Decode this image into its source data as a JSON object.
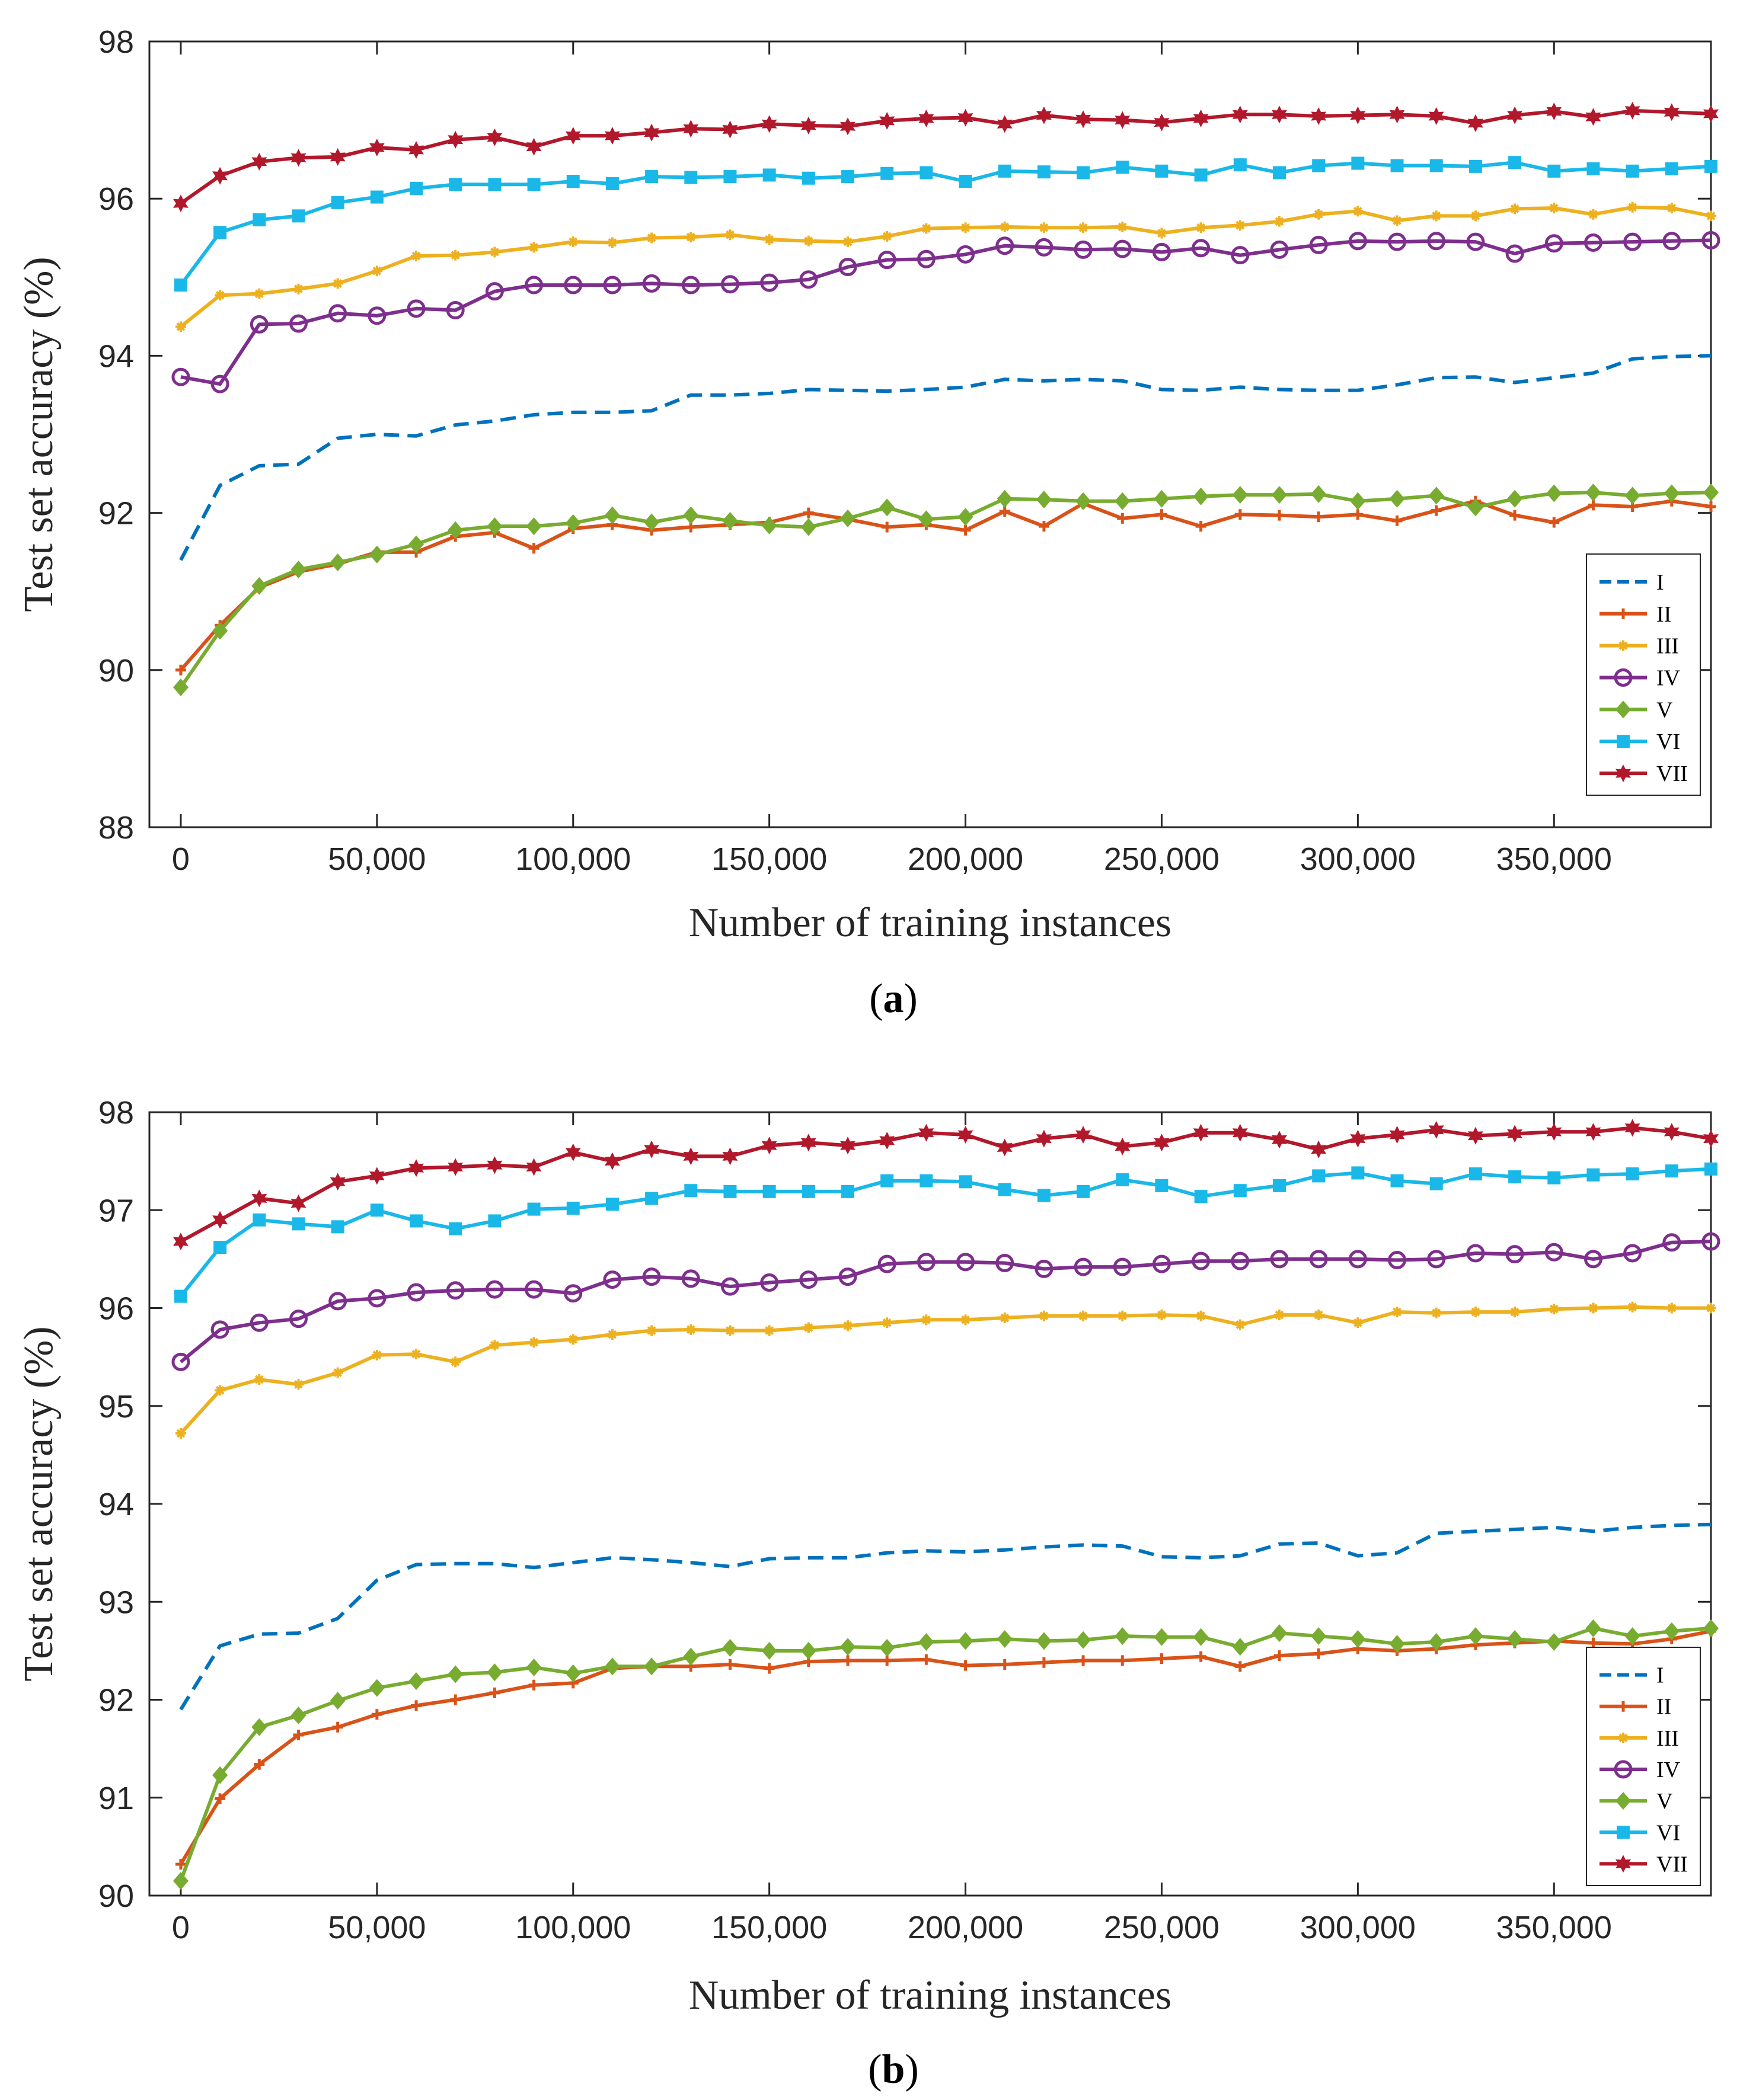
{
  "colors": {
    "I": "#0072BD",
    "II": "#D95319",
    "III": "#EDB120",
    "IV": "#7E2F8E",
    "V": "#77AC30",
    "VI": "#1AB8E8",
    "VII": "#B2182B"
  },
  "chart_data": [
    {
      "type": "line",
      "panel_label": "a",
      "xlabel": "Number of training instances",
      "ylabel": "Test set accuracy (%)",
      "xlim": [
        -8000,
        390000
      ],
      "ylim": [
        88,
        98
      ],
      "xticks": [
        0,
        50000,
        100000,
        150000,
        200000,
        250000,
        300000,
        350000
      ],
      "xtick_labels": [
        "0",
        "50,000",
        "100,000",
        "150,000",
        "200,000",
        "250,000",
        "300,000",
        "350,000"
      ],
      "yticks": [
        88,
        90,
        92,
        94,
        96,
        98
      ],
      "ytick_labels": [
        "88",
        "90",
        "92",
        "94",
        "96",
        "98"
      ],
      "legend_position": "bottom-right",
      "x": [
        0,
        10000,
        20000,
        30000,
        40000,
        50000,
        60000,
        70000,
        80000,
        90000,
        100000,
        110000,
        120000,
        130000,
        140000,
        150000,
        160000,
        170000,
        180000,
        190000,
        200000,
        210000,
        220000,
        230000,
        240000,
        250000,
        260000,
        270000,
        280000,
        290000,
        300000,
        310000,
        320000,
        330000,
        340000,
        350000,
        360000,
        370000,
        380000,
        390000
      ],
      "series": [
        {
          "name": "I",
          "style": "dash",
          "marker": "none",
          "values": [
            91.4,
            92.35,
            92.6,
            92.62,
            92.95,
            93.0,
            92.98,
            93.12,
            93.17,
            93.25,
            93.28,
            93.28,
            93.3,
            93.5,
            93.5,
            93.52,
            93.57,
            93.56,
            93.55,
            93.57,
            93.6,
            93.7,
            93.68,
            93.7,
            93.68,
            93.57,
            93.56,
            93.6,
            93.57,
            93.56,
            93.56,
            93.63,
            93.72,
            93.73,
            93.66,
            93.72,
            93.78,
            93.96,
            93.99,
            94.0
          ]
        },
        {
          "name": "II",
          "style": "solid",
          "marker": "plus",
          "values": [
            90.0,
            90.57,
            91.05,
            91.25,
            91.35,
            91.5,
            91.5,
            91.7,
            91.75,
            91.55,
            91.8,
            91.85,
            91.78,
            91.82,
            91.85,
            91.88,
            92.0,
            91.92,
            91.82,
            91.85,
            91.78,
            92.02,
            91.83,
            92.12,
            91.93,
            91.98,
            91.83,
            91.98,
            91.97,
            91.95,
            91.98,
            91.9,
            92.03,
            92.15,
            91.97,
            91.88,
            92.1,
            92.08,
            92.15,
            92.08
          ]
        },
        {
          "name": "III",
          "style": "solid",
          "marker": "star",
          "values": [
            94.37,
            94.77,
            94.79,
            94.85,
            94.92,
            95.08,
            95.27,
            95.28,
            95.32,
            95.38,
            95.45,
            95.44,
            95.5,
            95.51,
            95.54,
            95.48,
            95.46,
            95.45,
            95.52,
            95.62,
            95.63,
            95.64,
            95.63,
            95.63,
            95.64,
            95.56,
            95.63,
            95.66,
            95.71,
            95.8,
            95.84,
            95.72,
            95.78,
            95.78,
            95.87,
            95.88,
            95.8,
            95.89,
            95.88,
            95.78
          ]
        },
        {
          "name": "IV",
          "style": "solid",
          "marker": "circle",
          "values": [
            93.73,
            93.64,
            94.4,
            94.41,
            94.54,
            94.51,
            94.6,
            94.58,
            94.82,
            94.9,
            94.9,
            94.9,
            94.92,
            94.9,
            94.91,
            94.93,
            94.97,
            95.13,
            95.22,
            95.23,
            95.29,
            95.4,
            95.38,
            95.35,
            95.36,
            95.32,
            95.37,
            95.28,
            95.35,
            95.41,
            95.46,
            95.45,
            95.46,
            95.45,
            95.3,
            95.43,
            95.44,
            95.45,
            95.46,
            95.47
          ]
        },
        {
          "name": "V",
          "style": "solid",
          "marker": "diamond",
          "values": [
            89.78,
            90.5,
            91.07,
            91.28,
            91.37,
            91.47,
            91.6,
            91.78,
            91.83,
            91.83,
            91.87,
            91.97,
            91.88,
            91.97,
            91.9,
            91.84,
            91.82,
            91.93,
            92.07,
            91.92,
            91.95,
            92.18,
            92.17,
            92.15,
            92.15,
            92.18,
            92.21,
            92.23,
            92.23,
            92.24,
            92.15,
            92.18,
            92.22,
            92.07,
            92.18,
            92.25,
            92.26,
            92.22,
            92.25,
            92.26
          ]
        },
        {
          "name": "VI",
          "style": "solid",
          "marker": "square",
          "values": [
            94.9,
            95.57,
            95.73,
            95.78,
            95.95,
            96.02,
            96.13,
            96.18,
            96.18,
            96.18,
            96.22,
            96.19,
            96.28,
            96.27,
            96.28,
            96.3,
            96.26,
            96.28,
            96.32,
            96.33,
            96.22,
            96.35,
            96.34,
            96.33,
            96.4,
            96.35,
            96.3,
            96.43,
            96.33,
            96.42,
            96.45,
            96.42,
            96.42,
            96.41,
            96.46,
            96.35,
            96.38,
            96.35,
            96.38,
            96.41
          ]
        },
        {
          "name": "VII",
          "style": "solid",
          "marker": "hexagram",
          "values": [
            95.94,
            96.29,
            96.47,
            96.52,
            96.53,
            96.65,
            96.62,
            96.75,
            96.78,
            96.66,
            96.8,
            96.8,
            96.84,
            96.89,
            96.88,
            96.95,
            96.93,
            96.92,
            96.99,
            97.02,
            97.03,
            96.95,
            97.06,
            97.01,
            97.0,
            96.97,
            97.02,
            97.07,
            97.07,
            97.05,
            97.06,
            97.07,
            97.05,
            96.96,
            97.06,
            97.11,
            97.04,
            97.12,
            97.1,
            97.08
          ]
        }
      ]
    },
    {
      "type": "line",
      "panel_label": "b",
      "xlabel": "Number of training instances",
      "ylabel": "Test set accuracy (%)",
      "xlim": [
        -8000,
        390000
      ],
      "ylim": [
        90,
        98
      ],
      "xticks": [
        0,
        50000,
        100000,
        150000,
        200000,
        250000,
        300000,
        350000
      ],
      "xtick_labels": [
        "0",
        "50,000",
        "100,000",
        "150,000",
        "200,000",
        "250,000",
        "300,000",
        "350,000"
      ],
      "yticks": [
        90,
        91,
        92,
        93,
        94,
        95,
        96,
        97,
        98
      ],
      "ytick_labels": [
        "90",
        "91",
        "92",
        "93",
        "94",
        "95",
        "96",
        "97",
        "98"
      ],
      "legend_position": "bottom-right",
      "x": [
        0,
        10000,
        20000,
        30000,
        40000,
        50000,
        60000,
        70000,
        80000,
        90000,
        100000,
        110000,
        120000,
        130000,
        140000,
        150000,
        160000,
        170000,
        180000,
        190000,
        200000,
        210000,
        220000,
        230000,
        240000,
        250000,
        260000,
        270000,
        280000,
        290000,
        300000,
        310000,
        320000,
        330000,
        340000,
        350000,
        360000,
        370000,
        380000,
        390000
      ],
      "series": [
        {
          "name": "I",
          "style": "dash",
          "marker": "none",
          "values": [
            91.9,
            92.55,
            92.67,
            92.68,
            92.83,
            93.22,
            93.38,
            93.39,
            93.39,
            93.35,
            93.4,
            93.45,
            93.43,
            93.4,
            93.36,
            93.44,
            93.45,
            93.45,
            93.5,
            93.52,
            93.51,
            93.53,
            93.56,
            93.58,
            93.57,
            93.46,
            93.45,
            93.47,
            93.59,
            93.6,
            93.47,
            93.5,
            93.7,
            93.72,
            93.74,
            93.76,
            93.72,
            93.76,
            93.78,
            93.79
          ]
        },
        {
          "name": "II",
          "style": "solid",
          "marker": "plus",
          "values": [
            90.32,
            90.99,
            91.34,
            91.64,
            91.72,
            91.85,
            91.94,
            92.0,
            92.07,
            92.15,
            92.17,
            92.32,
            92.34,
            92.34,
            92.36,
            92.32,
            92.39,
            92.4,
            92.4,
            92.41,
            92.35,
            92.36,
            92.38,
            92.4,
            92.4,
            92.42,
            92.44,
            92.34,
            92.45,
            92.47,
            92.52,
            92.5,
            92.52,
            92.56,
            92.58,
            92.6,
            92.58,
            92.57,
            92.62,
            92.7
          ]
        },
        {
          "name": "III",
          "style": "solid",
          "marker": "star",
          "values": [
            94.72,
            95.16,
            95.27,
            95.22,
            95.34,
            95.52,
            95.53,
            95.45,
            95.62,
            95.65,
            95.68,
            95.73,
            95.77,
            95.78,
            95.77,
            95.77,
            95.8,
            95.82,
            95.85,
            95.88,
            95.88,
            95.9,
            95.92,
            95.92,
            95.92,
            95.93,
            95.92,
            95.83,
            95.93,
            95.93,
            95.85,
            95.96,
            95.95,
            95.96,
            95.96,
            95.99,
            96.0,
            96.01,
            96.0,
            96.0
          ]
        },
        {
          "name": "IV",
          "style": "solid",
          "marker": "circle",
          "values": [
            95.45,
            95.78,
            95.85,
            95.89,
            96.07,
            96.1,
            96.16,
            96.18,
            96.19,
            96.19,
            96.15,
            96.29,
            96.32,
            96.3,
            96.22,
            96.26,
            96.29,
            96.32,
            96.45,
            96.47,
            96.47,
            96.46,
            96.4,
            96.42,
            96.42,
            96.45,
            96.48,
            96.48,
            96.5,
            96.5,
            96.5,
            96.49,
            96.5,
            96.56,
            96.55,
            96.57,
            96.5,
            96.56,
            96.67,
            96.68
          ]
        },
        {
          "name": "V",
          "style": "solid",
          "marker": "diamond",
          "values": [
            90.15,
            91.23,
            91.72,
            91.84,
            91.99,
            92.12,
            92.19,
            92.26,
            92.28,
            92.33,
            92.27,
            92.34,
            92.34,
            92.44,
            92.53,
            92.5,
            92.5,
            92.54,
            92.53,
            92.59,
            92.6,
            92.62,
            92.6,
            92.61,
            92.65,
            92.64,
            92.64,
            92.54,
            92.68,
            92.65,
            92.62,
            92.57,
            92.59,
            92.65,
            92.62,
            92.59,
            92.73,
            92.65,
            92.7,
            92.73
          ]
        },
        {
          "name": "VI",
          "style": "solid",
          "marker": "square",
          "values": [
            96.12,
            96.62,
            96.9,
            96.86,
            96.83,
            97.0,
            96.89,
            96.81,
            96.89,
            97.01,
            97.02,
            97.06,
            97.12,
            97.2,
            97.19,
            97.19,
            97.19,
            97.19,
            97.3,
            97.3,
            97.29,
            97.21,
            97.15,
            97.19,
            97.31,
            97.25,
            97.14,
            97.2,
            97.25,
            97.35,
            97.38,
            97.3,
            97.27,
            97.37,
            97.34,
            97.33,
            97.36,
            97.37,
            97.4,
            97.42
          ]
        },
        {
          "name": "VII",
          "style": "solid",
          "marker": "hexagram",
          "values": [
            96.68,
            96.9,
            97.12,
            97.07,
            97.29,
            97.35,
            97.43,
            97.44,
            97.46,
            97.44,
            97.59,
            97.5,
            97.62,
            97.55,
            97.55,
            97.66,
            97.69,
            97.66,
            97.71,
            97.79,
            97.77,
            97.64,
            97.73,
            97.77,
            97.65,
            97.69,
            97.79,
            97.79,
            97.72,
            97.62,
            97.73,
            97.77,
            97.82,
            97.76,
            97.78,
            97.8,
            97.8,
            97.84,
            97.8,
            97.73
          ]
        }
      ]
    }
  ]
}
